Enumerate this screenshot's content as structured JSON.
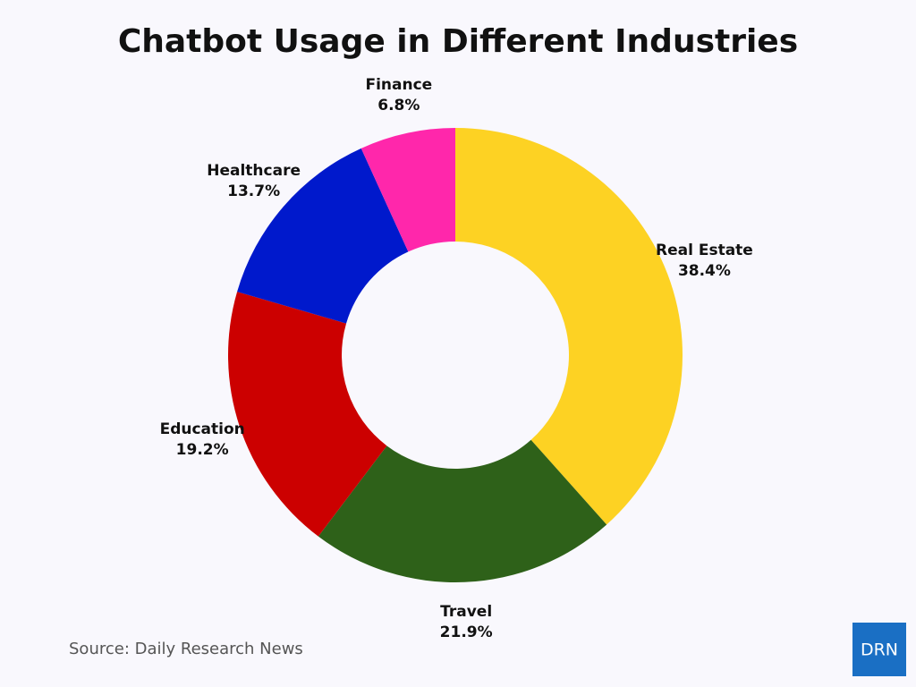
{
  "chart_data": {
    "type": "donut",
    "title": "Chatbot Usage in Different Industries",
    "categories": [
      "Real Estate",
      "Travel",
      "Education",
      "Healthcare",
      "Finance"
    ],
    "values": [
      38.4,
      21.9,
      19.2,
      13.7,
      6.8
    ],
    "value_labels": [
      "38.4%",
      "21.9%",
      "19.2%",
      "13.7%",
      "6.8%"
    ],
    "colors": [
      "#fdd223",
      "#2e6119",
      "#cc0000",
      "#0019cc",
      "#ff27ab"
    ]
  },
  "footer": {
    "source": "Source: Daily Research News",
    "logo": "DRN"
  }
}
